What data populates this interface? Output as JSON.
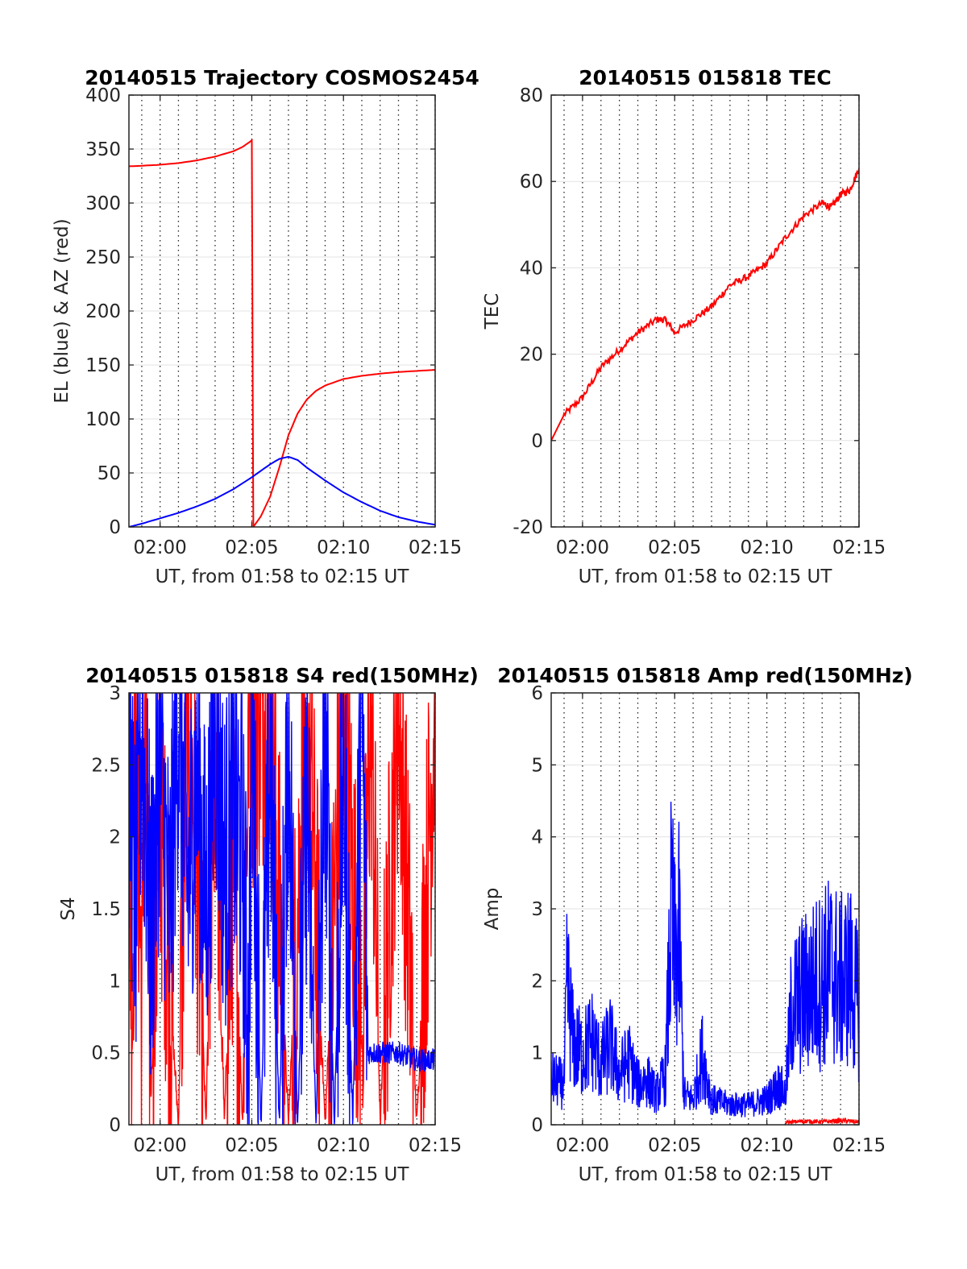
{
  "chart_data": [
    {
      "type": "line",
      "title": "20140515 Trajectory COSMOS2454",
      "xlabel": "UT, from 01:58 to 02:15 UT",
      "ylabel": "EL (blue) & AZ (red)",
      "xlim": [
        "01:58:18",
        "02:15:00"
      ],
      "ylim": [
        0,
        400
      ],
      "xticks": [
        "02:00",
        "02:05",
        "02:10",
        "02:15"
      ],
      "yticks": [
        0,
        50,
        100,
        150,
        200,
        250,
        300,
        350,
        400
      ],
      "grid": true,
      "series": [
        {
          "color": "#ff0000",
          "x": [
            "01:58:18",
            "01:59:00",
            "02:00:00",
            "02:01:00",
            "02:02:00",
            "02:03:00",
            "02:04:00",
            "02:04:30",
            "02:05:00",
            "02:05:05",
            "02:05:30",
            "02:06:00",
            "02:06:30",
            "02:07:00",
            "02:07:30",
            "02:08:00",
            "02:08:30",
            "02:09:00",
            "02:10:00",
            "02:11:00",
            "02:12:00",
            "02:13:00",
            "02:14:00",
            "02:15:00"
          ],
          "values": [
            334,
            334.5,
            335.5,
            337,
            339.5,
            343,
            348,
            352,
            358,
            0,
            10,
            28,
            55,
            85,
            105,
            118,
            126,
            131,
            137,
            140,
            142,
            143.5,
            144.5,
            145.5
          ]
        },
        {
          "color": "#0000ff",
          "x": [
            "01:58:18",
            "01:59:00",
            "02:00:00",
            "02:01:00",
            "02:02:00",
            "02:03:00",
            "02:04:00",
            "02:05:00",
            "02:06:00",
            "02:06:30",
            "02:07:00",
            "02:07:30",
            "02:08:00",
            "02:09:00",
            "02:10:00",
            "02:11:00",
            "02:12:00",
            "02:13:00",
            "02:14:00",
            "02:15:00"
          ],
          "values": [
            0,
            3,
            8,
            13,
            19,
            26,
            35,
            46,
            58,
            63,
            65,
            62,
            55,
            43,
            32,
            23,
            15,
            9,
            5,
            2
          ]
        }
      ]
    },
    {
      "type": "line",
      "title": "20140515 015818 TEC",
      "xlabel": "UT, from 01:58 to 02:15 UT",
      "ylabel": "TEC",
      "xlim": [
        "01:58:18",
        "02:15:00"
      ],
      "ylim": [
        -20,
        80
      ],
      "xticks": [
        "02:00",
        "02:05",
        "02:10",
        "02:15"
      ],
      "yticks": [
        -20,
        0,
        20,
        40,
        60,
        80
      ],
      "grid": true,
      "series": [
        {
          "color": "#ff0000",
          "x": [
            "01:58:18",
            "01:59:00",
            "02:00:00",
            "02:01:00",
            "02:02:00",
            "02:03:00",
            "02:04:00",
            "02:04:30",
            "02:05:00",
            "02:06:00",
            "02:07:00",
            "02:08:00",
            "02:09:00",
            "02:10:00",
            "02:11:00",
            "02:12:00",
            "02:13:00",
            "02:13:30",
            "02:14:00",
            "02:14:30",
            "02:15:00"
          ],
          "values": [
            0,
            6,
            10,
            17,
            21,
            25,
            28,
            28,
            25,
            28,
            31,
            36,
            38,
            41,
            47,
            52,
            55,
            54,
            57,
            58,
            63
          ]
        }
      ]
    },
    {
      "type": "line",
      "title": "20140515 015818 S4 red(150MHz)",
      "xlabel": "UT, from 01:58 to 02:15 UT",
      "ylabel": "S4",
      "xlim": [
        "01:58:18",
        "02:15:00"
      ],
      "ylim": [
        0,
        3
      ],
      "xticks": [
        "02:00",
        "02:05",
        "02:10",
        "02:15"
      ],
      "yticks": [
        0,
        0.5,
        1,
        1.5,
        2,
        2.5,
        3
      ],
      "grid": true,
      "series": [
        {
          "color": "#ff0000",
          "x": [
            "01:58:18",
            "01:58:30",
            "01:58:40",
            "01:59:00",
            "01:59:10",
            "01:59:30",
            "02:00:00",
            "02:00:30",
            "02:01:00",
            "02:01:30",
            "02:02:00",
            "02:02:30",
            "02:03:00",
            "02:03:30",
            "02:04:00",
            "02:04:30",
            "02:04:50",
            "02:05:00",
            "02:06:00",
            "02:07:00",
            "02:08:00",
            "02:09:00",
            "02:10:00",
            "02:11:00",
            "02:11:30",
            "02:12:00",
            "02:13:00",
            "02:14:00",
            "02:15:00"
          ],
          "values": [
            1.8,
            0.9,
            3,
            0.8,
            3,
            0.2,
            2.2,
            1.0,
            0,
            3,
            1.8,
            0,
            3,
            0,
            1.9,
            0,
            3,
            2.8,
            3,
            0,
            3,
            0,
            3,
            0.5,
            3,
            0,
            3,
            0,
            3
          ]
        },
        {
          "color": "#0000ff",
          "x": [
            "01:58:18",
            "01:58:40",
            "01:59:00",
            "01:59:30",
            "02:00:00",
            "02:00:30",
            "02:01:00",
            "02:01:30",
            "02:02:00",
            "02:02:30",
            "02:03:00",
            "02:03:30",
            "02:04:00",
            "02:04:30",
            "02:04:50",
            "02:05:00",
            "02:05:30",
            "02:06:00",
            "02:06:30",
            "02:07:00",
            "02:07:30",
            "02:08:00",
            "02:08:30",
            "02:09:00",
            "02:09:30",
            "02:10:00",
            "02:10:30",
            "02:11:00",
            "02:11:20",
            "02:12:00",
            "02:13:00",
            "02:14:00",
            "02:15:00"
          ],
          "values": [
            2.5,
            1.5,
            2.8,
            1.3,
            2.6,
            1.4,
            2.9,
            1.6,
            2.5,
            1.5,
            2.8,
            1.8,
            2.2,
            1.9,
            0.5,
            2.9,
            0,
            2.6,
            0,
            2.8,
            0,
            2.3,
            0,
            2.7,
            0,
            2.6,
            0,
            3,
            0.5,
            0.5,
            0.5,
            0.45,
            0.45
          ]
        }
      ]
    },
    {
      "type": "line",
      "title": "20140515 015818 Amp red(150MHz)",
      "xlabel": "UT, from 01:58 to 02:15 UT",
      "ylabel": "Amp",
      "xlim": [
        "01:58:18",
        "02:15:00"
      ],
      "ylim": [
        0,
        6
      ],
      "xticks": [
        "02:00",
        "02:05",
        "02:10",
        "02:15"
      ],
      "yticks": [
        0,
        1,
        2,
        3,
        4,
        5,
        6
      ],
      "grid": true,
      "series": [
        {
          "color": "#ff0000",
          "x": [
            "02:11:00",
            "02:12:00",
            "02:13:00",
            "02:14:00",
            "02:15:00"
          ],
          "values": [
            0.05,
            0.07,
            0.06,
            0.08,
            0.06
          ]
        },
        {
          "color": "#0000ff",
          "x": [
            "01:58:18",
            "01:59:00",
            "01:59:10",
            "01:59:30",
            "02:00:00",
            "02:00:30",
            "02:01:00",
            "02:01:30",
            "02:02:00",
            "02:02:30",
            "02:03:00",
            "02:03:30",
            "02:04:00",
            "02:04:30",
            "02:04:50",
            "02:05:00",
            "02:05:15",
            "02:05:30",
            "02:06:00",
            "02:06:30",
            "02:07:00",
            "02:08:00",
            "02:09:00",
            "02:10:00",
            "02:10:40",
            "02:11:00",
            "02:11:20",
            "02:12:00",
            "02:13:00",
            "02:13:30",
            "02:14:00",
            "02:14:30",
            "02:15:00"
          ],
          "values": [
            0.9,
            0.8,
            2.8,
            1.6,
            1.4,
            1.7,
            1.2,
            1.6,
            1.0,
            1.3,
            0.8,
            0.9,
            0.6,
            1.0,
            4.3,
            3.2,
            3.7,
            0.6,
            0.5,
            1.4,
            0.5,
            0.4,
            0.4,
            0.5,
            0.8,
            0.6,
            2.3,
            2.6,
            2.9,
            3.1,
            2.8,
            3.0,
            2.3
          ]
        }
      ]
    }
  ]
}
